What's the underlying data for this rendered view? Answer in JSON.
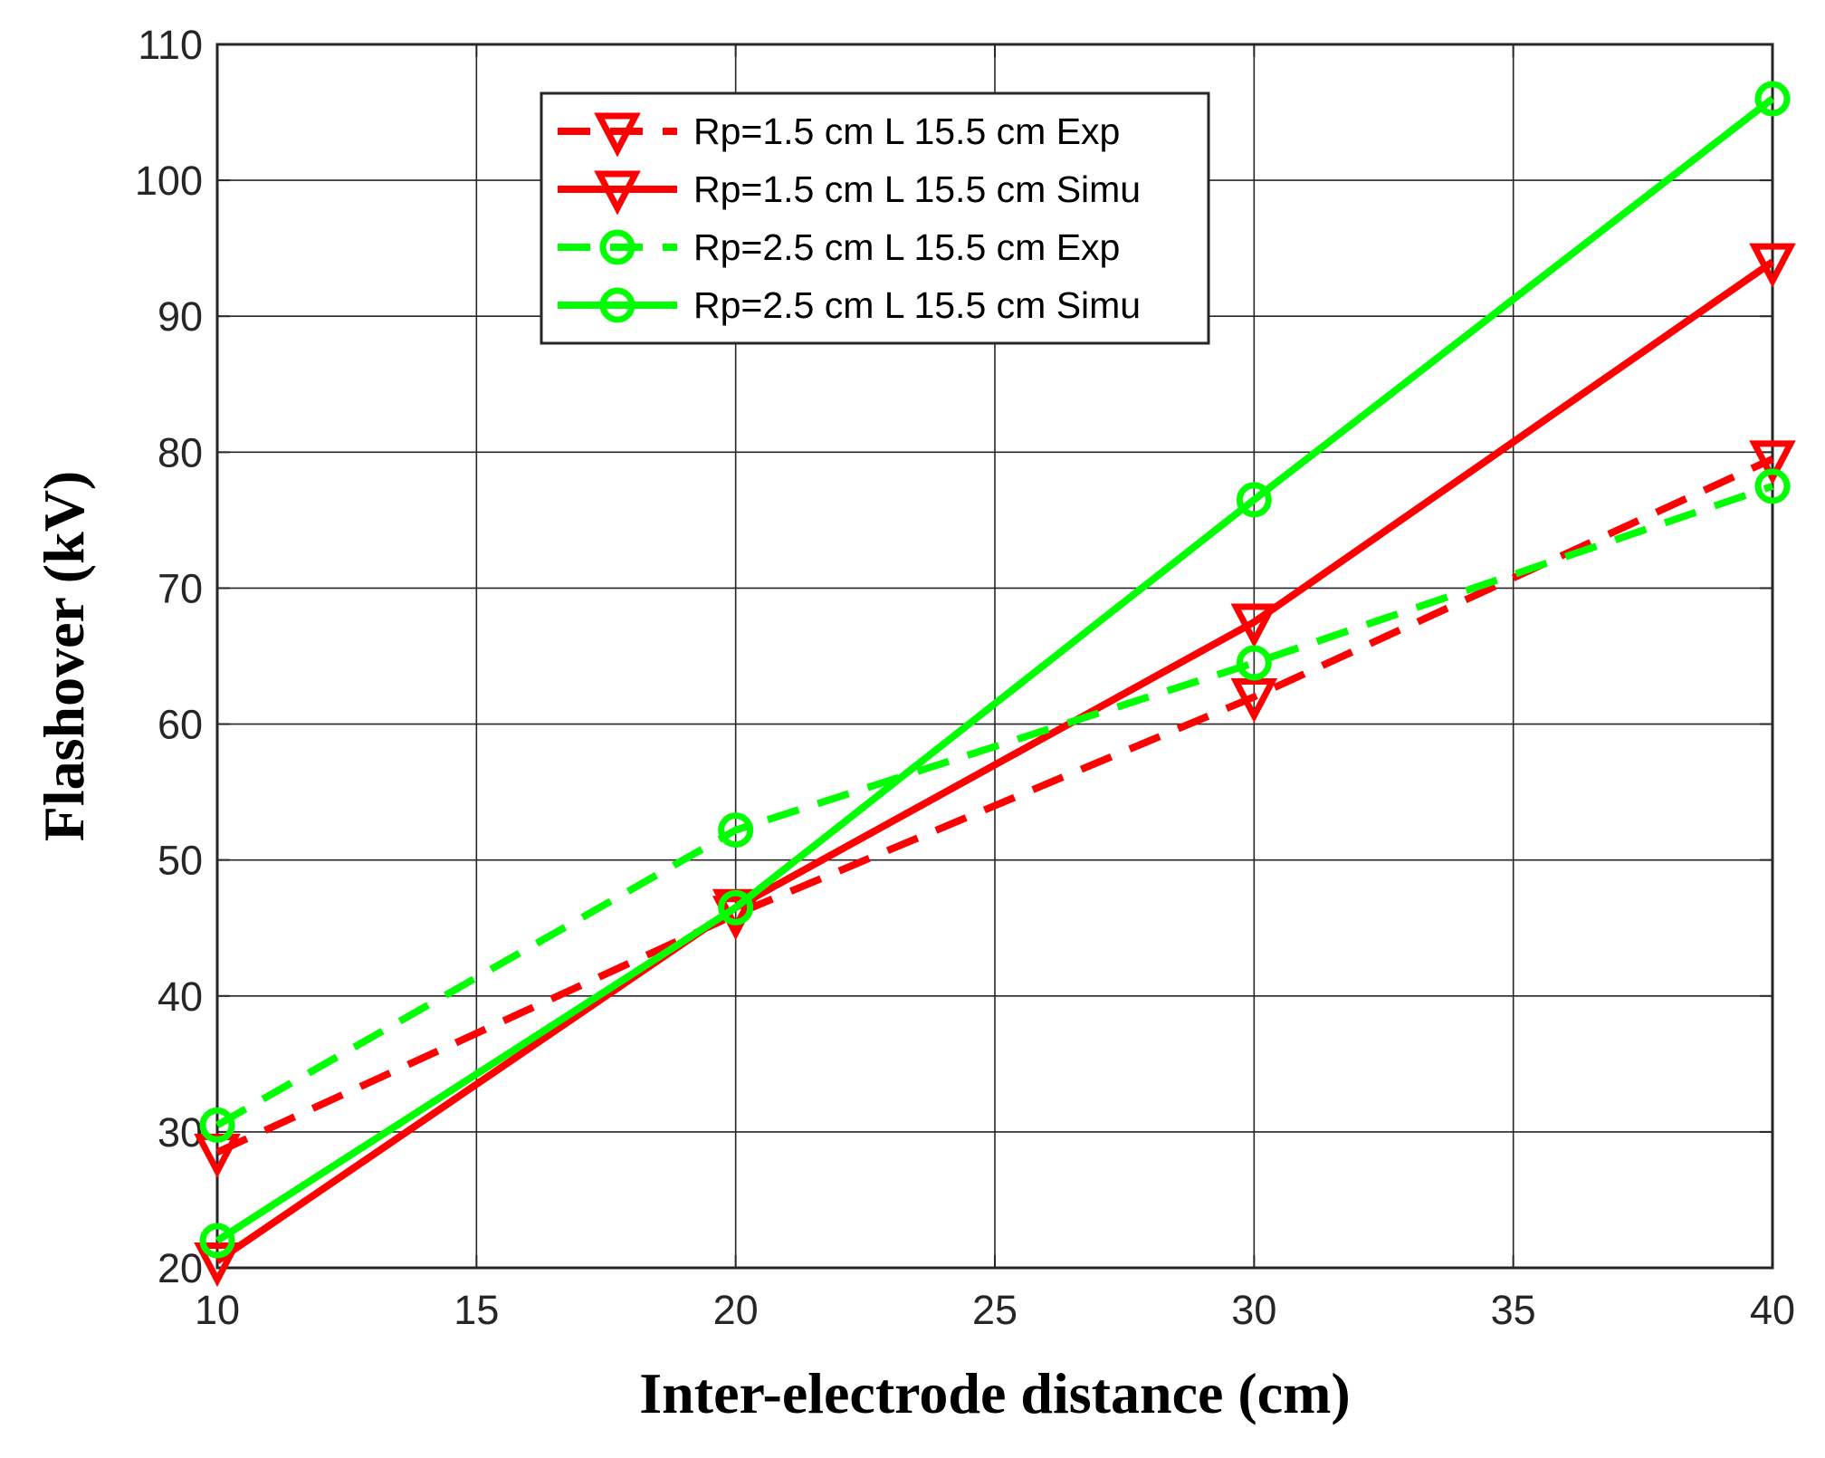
{
  "chart_data": {
    "type": "line",
    "title": "",
    "xlabel": "Inter-electrode distance (cm)",
    "ylabel": "Flashover (kV)",
    "xlim": [
      10,
      40
    ],
    "ylim": [
      20,
      110
    ],
    "xticks": [
      10,
      15,
      20,
      25,
      30,
      35,
      40
    ],
    "yticks": [
      20,
      30,
      40,
      50,
      60,
      70,
      80,
      90,
      100,
      110
    ],
    "grid": true,
    "legend_position": "top-center",
    "x": [
      10,
      20,
      30,
      40
    ],
    "series": [
      {
        "name": "Rp=1.5 cm L 15.5 cm Exp",
        "values": [
          28.5,
          46,
          62,
          79.5
        ],
        "color": "#ff0000",
        "line": "dashed",
        "marker": "triangle-down"
      },
      {
        "name": "Rp=1.5 cm L 15.5 cm Simu",
        "values": [
          20.5,
          46.5,
          67.5,
          94
        ],
        "color": "#ff0000",
        "line": "solid",
        "marker": "triangle-down"
      },
      {
        "name": "Rp=2.5 cm L 15.5 cm Exp",
        "values": [
          30.5,
          52.2,
          64.5,
          77.5
        ],
        "color": "#00ff00",
        "line": "dashed",
        "marker": "circle"
      },
      {
        "name": "Rp=2.5 cm L 15.5 cm Simu",
        "values": [
          22,
          46.5,
          76.5,
          106
        ],
        "color": "#00ff00",
        "line": "solid",
        "marker": "circle"
      }
    ]
  }
}
